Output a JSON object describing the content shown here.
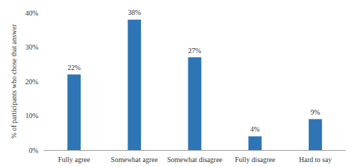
{
  "chart_data": {
    "type": "bar",
    "categories": [
      "Fully agree",
      "Somewhat agree",
      "Somewhat disagree",
      "Fully disagree",
      "Hard to say"
    ],
    "values": [
      22,
      38,
      27,
      4,
      9
    ],
    "value_labels": [
      "22%",
      "38%",
      "27%",
      "4%",
      "9%"
    ],
    "color": "#2e75b6",
    "y_label": "% of participants who chose that answer",
    "ylim": [
      0,
      40
    ],
    "yticks": [
      {
        "value": 0,
        "label": "0%"
      },
      {
        "value": 10,
        "label": "10%"
      },
      {
        "value": 20,
        "label": "20%"
      },
      {
        "value": 30,
        "label": "30%"
      },
      {
        "value": 40,
        "label": "40%"
      }
    ],
    "grid": false,
    "data_labels": true
  }
}
